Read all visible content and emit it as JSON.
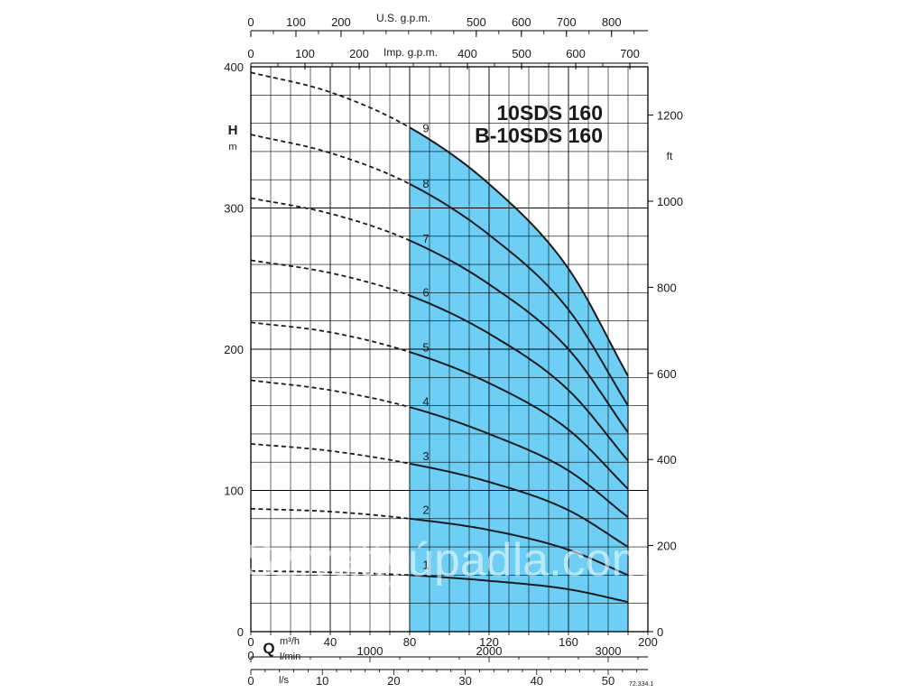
{
  "chart_data": {
    "type": "line",
    "title_lines": [
      "10SDS 160",
      "B-10SDS 160"
    ],
    "ylabel": "H",
    "yunit": "m",
    "ylim": [
      0,
      400
    ],
    "y_ticks": [
      0,
      100,
      200,
      300,
      400
    ],
    "right_axis": {
      "label": "ft",
      "ticks": [
        0,
        200,
        400,
        600,
        800,
        1000,
        1200
      ]
    },
    "xlabel": "Q",
    "x_unit_m3h": "m³/h",
    "x_unit_lmin": "l/min",
    "x_unit_ls": "l/s",
    "xlim": [
      0,
      200
    ],
    "x_ticks": [
      0,
      40,
      80,
      120,
      160,
      200
    ],
    "lmin_ticks": [
      1000,
      2000,
      3000
    ],
    "ls_ticks": [
      0,
      10,
      20,
      30,
      40,
      50
    ],
    "top_axis_us": {
      "label": "U.S. g.p.m.",
      "ticks": [
        0,
        100,
        200,
        500,
        600,
        700,
        800
      ]
    },
    "top_axis_imp": {
      "label": "Imp. g.p.m.",
      "ticks": [
        0,
        100,
        200,
        400,
        500,
        600,
        700
      ]
    },
    "operating_range": {
      "q_min": 80,
      "q_max": 190
    },
    "series": [
      {
        "name": "1",
        "q": [
          0,
          40,
          80,
          120,
          160,
          190
        ],
        "h": [
          43,
          42,
          40,
          36,
          30,
          21
        ]
      },
      {
        "name": "2",
        "q": [
          0,
          40,
          80,
          120,
          160,
          190
        ],
        "h": [
          87,
          85,
          80,
          72,
          58,
          40
        ]
      },
      {
        "name": "3",
        "q": [
          0,
          40,
          80,
          120,
          160,
          190
        ],
        "h": [
          133,
          128,
          119,
          106,
          86,
          60
        ]
      },
      {
        "name": "4",
        "q": [
          0,
          40,
          80,
          120,
          160,
          190
        ],
        "h": [
          178,
          171,
          159,
          140,
          114,
          81
        ]
      },
      {
        "name": "5",
        "q": [
          0,
          40,
          80,
          120,
          160,
          190
        ],
        "h": [
          219,
          212,
          198,
          176,
          143,
          101
        ]
      },
      {
        "name": "6",
        "q": [
          0,
          40,
          80,
          120,
          160,
          190
        ],
        "h": [
          263,
          254,
          238,
          211,
          171,
          121
        ]
      },
      {
        "name": "7",
        "q": [
          0,
          40,
          80,
          120,
          160,
          190
        ],
        "h": [
          307,
          296,
          277,
          246,
          200,
          141
        ]
      },
      {
        "name": "8",
        "q": [
          0,
          40,
          80,
          120,
          160,
          190
        ],
        "h": [
          352,
          339,
          317,
          281,
          228,
          160
        ]
      },
      {
        "name": "9",
        "q": [
          0,
          40,
          80,
          120,
          160,
          190
        ],
        "h": [
          396,
          382,
          357,
          317,
          257,
          181
        ]
      }
    ],
    "grid": true,
    "figure_code": "72.334.1",
    "watermark_text": "Szivattyúpadla.com",
    "colors": {
      "range_fill": "#6dcff6",
      "line": "#1a1a1a",
      "grid": "#000000",
      "watermark": "#ffffff"
    }
  }
}
